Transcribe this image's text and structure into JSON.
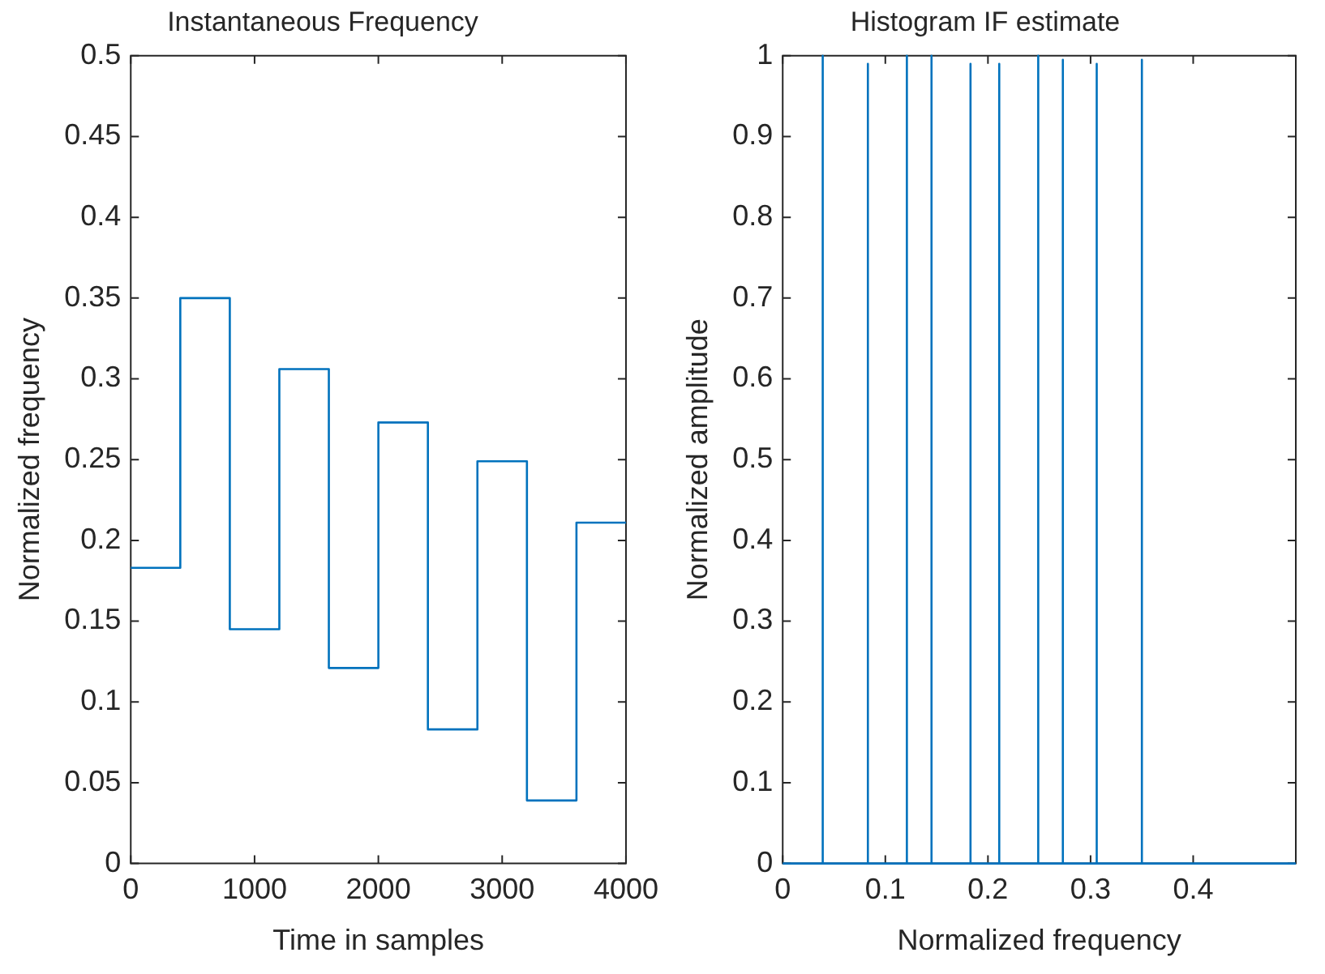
{
  "chart_data": [
    {
      "type": "step",
      "title": "Instantaneous Frequency",
      "xlabel": "Time in samples",
      "ylabel": "Normalized frequency",
      "x": [
        0,
        400,
        800,
        1200,
        1600,
        2000,
        2400,
        2800,
        3200,
        3600,
        4000
      ],
      "series": [
        {
          "color": "#0072bd",
          "values": [
            0.183,
            0.35,
            0.145,
            0.306,
            0.121,
            0.273,
            0.083,
            0.249,
            0.039,
            0.211,
            0.211
          ]
        }
      ],
      "xlim": [
        0,
        4000
      ],
      "xticks": [
        0,
        1000,
        2000,
        3000,
        4000
      ],
      "ylim": [
        0,
        0.5
      ],
      "yticks": [
        0,
        0.05,
        0.1,
        0.15,
        0.2,
        0.25,
        0.3,
        0.35,
        0.4,
        0.45,
        0.5
      ],
      "grid": false,
      "legend": false,
      "marker": "none",
      "line_style": "solid"
    },
    {
      "type": "line",
      "title": "Histogram IF estimate",
      "xlabel": "Normalized frequency",
      "ylabel": "Normalized amplitude",
      "series": [
        {
          "color": "#0072bd",
          "x": [
            0,
            0.039,
            0.039,
            0.039,
            0.083,
            0.083,
            0.083,
            0.121,
            0.121,
            0.121,
            0.145,
            0.145,
            0.145,
            0.183,
            0.183,
            0.183,
            0.211,
            0.211,
            0.211,
            0.249,
            0.249,
            0.249,
            0.273,
            0.273,
            0.273,
            0.306,
            0.306,
            0.306,
            0.35,
            0.35,
            0.35,
            0.5
          ],
          "values": [
            0,
            0,
            1,
            0,
            0,
            0.99,
            0,
            0,
            1,
            0,
            0,
            1,
            0,
            0,
            0.99,
            0,
            0,
            0.99,
            0,
            0,
            1,
            0,
            0,
            0.995,
            0,
            0,
            0.99,
            0,
            0,
            0.995,
            0,
            0
          ]
        }
      ],
      "xlim": [
        0,
        0.5
      ],
      "xticks": [
        0,
        0.1,
        0.2,
        0.3,
        0.4
      ],
      "ylim": [
        0,
        1
      ],
      "yticks": [
        0,
        0.1,
        0.2,
        0.3,
        0.4,
        0.5,
        0.6,
        0.7,
        0.8,
        0.9,
        1
      ],
      "grid": false,
      "legend": false,
      "marker": "none",
      "line_style": "solid"
    }
  ]
}
